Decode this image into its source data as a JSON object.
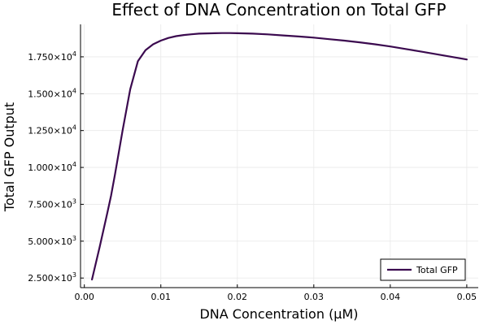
{
  "chart_data": {
    "type": "line",
    "title": "Effect of DNA Concentration on Total GFP",
    "xlabel": "DNA Concentration (μM)",
    "ylabel": "Total GFP Output",
    "xlim": [
      -0.0005,
      0.0515
    ],
    "ylim": [
      1850,
      19700
    ],
    "grid": true,
    "legend_position": "bottom-right",
    "x_ticks": [
      {
        "value": 0.0,
        "label": "0.00"
      },
      {
        "value": 0.01,
        "label": "0.01"
      },
      {
        "value": 0.02,
        "label": "0.02"
      },
      {
        "value": 0.03,
        "label": "0.03"
      },
      {
        "value": 0.04,
        "label": "0.04"
      },
      {
        "value": 0.05,
        "label": "0.05"
      }
    ],
    "y_ticks": [
      {
        "value": 2500,
        "mantissa": "2.500",
        "exponent": "3"
      },
      {
        "value": 5000,
        "mantissa": "5.000",
        "exponent": "3"
      },
      {
        "value": 7500,
        "mantissa": "7.500",
        "exponent": "3"
      },
      {
        "value": 10000,
        "mantissa": "1.000",
        "exponent": "4"
      },
      {
        "value": 12500,
        "mantissa": "1.250",
        "exponent": "4"
      },
      {
        "value": 15000,
        "mantissa": "1.500",
        "exponent": "4"
      },
      {
        "value": 17500,
        "mantissa": "1.750",
        "exponent": "4"
      }
    ],
    "series": [
      {
        "name": "Total GFP",
        "color": "#3b0a4f",
        "x": [
          0.001,
          0.002,
          0.003,
          0.0035,
          0.004,
          0.005,
          0.006,
          0.007,
          0.008,
          0.009,
          0.01,
          0.011,
          0.012,
          0.013,
          0.014,
          0.015,
          0.016,
          0.017,
          0.018,
          0.019,
          0.02,
          0.022,
          0.024,
          0.026,
          0.028,
          0.03,
          0.032,
          0.034,
          0.036,
          0.038,
          0.04,
          0.042,
          0.044,
          0.046,
          0.048,
          0.05
        ],
        "y": [
          2400,
          4600,
          6900,
          8100,
          9500,
          12500,
          15300,
          17200,
          17950,
          18350,
          18600,
          18780,
          18900,
          18980,
          19030,
          19070,
          19090,
          19100,
          19110,
          19110,
          19100,
          19070,
          19020,
          18950,
          18880,
          18800,
          18700,
          18600,
          18480,
          18350,
          18200,
          18030,
          17860,
          17680,
          17500,
          17320
        ]
      }
    ]
  }
}
